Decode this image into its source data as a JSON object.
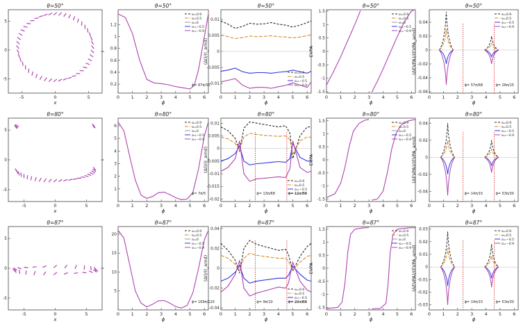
{
  "figure": {
    "columns": [
      {
        "ylabel": "y",
        "xlabel": "x"
      },
      {
        "ylabel": "I",
        "xlabel": "ϕ"
      },
      {
        "ylabel": "(ΔI)/(I_amd)",
        "xlabel": "ϕ"
      },
      {
        "ylabel": "EVPA",
        "xlabel": "ϕ"
      },
      {
        "ylabel": "(ΔEVPA)/(EVPA_amd)",
        "xlabel": "ϕ"
      }
    ],
    "colors": {
      "a09": "#222222",
      "a05": "#d98a2b",
      "a0": "#999999",
      "am05": "#3333dd",
      "am09": "#b040b0",
      "marker": "#cc2222",
      "axis": "#444444"
    }
  },
  "chart_data": [
    {
      "id": "r0c0",
      "type": "scatter",
      "title": "θ=50°",
      "xlabel": "x",
      "ylabel": "y",
      "xlim": [
        -7,
        7
      ],
      "ylim": [
        -7.5,
        7
      ],
      "xticks": [
        -5,
        0,
        5
      ],
      "yticks": [
        -5,
        0,
        5
      ],
      "description_points": {
        "shape": "ellipse",
        "cx": 0,
        "cy": 0.5,
        "rx": 5.6,
        "ry": 5.8
      }
    },
    {
      "id": "r0c1",
      "type": "line",
      "title": "θ=50°",
      "xlabel": "ϕ",
      "ylabel": "I",
      "xlim": [
        0,
        6.28
      ],
      "ylim": [
        0.05,
        1.45
      ],
      "xticks": [
        0,
        1,
        2,
        3,
        4,
        5,
        6
      ],
      "yticks": [
        0.2,
        0.4,
        0.6,
        0.8,
        1.0,
        1.2
      ],
      "legend": [
        "α=0.9",
        "α=0.5",
        "α=0",
        "α=−0.5",
        "α=−0.9"
      ],
      "annotation": "ϕ= 67π/36",
      "series": [
        {
          "name": "α=0",
          "x": [
            0,
            0.5,
            1,
            1.5,
            2,
            2.5,
            3,
            3.5,
            4,
            4.5,
            5,
            5.3,
            5.6,
            6,
            6.28
          ],
          "values": [
            1.38,
            1.32,
            1.05,
            0.6,
            0.28,
            0.22,
            0.21,
            0.19,
            0.16,
            0.14,
            0.12,
            0.18,
            0.45,
            1.0,
            1.38
          ]
        }
      ]
    },
    {
      "id": "r0c2",
      "type": "line",
      "title": "θ=50°",
      "xlabel": "ϕ",
      "ylabel": "(ΔI)/(I_amd)",
      "xlim": [
        0,
        6.28
      ],
      "ylim": [
        -0.013,
        0.013
      ],
      "xticks": [
        0,
        1,
        2,
        3,
        4,
        5,
        6
      ],
      "yticks": [
        -0.01,
        -0.005,
        0,
        0.005,
        0.01
      ],
      "legend": [
        "α=0.9",
        "α=0.5",
        "α=−0.5",
        "α=−0.9"
      ],
      "x": [
        0,
        0.5,
        1,
        1.5,
        2,
        2.5,
        3,
        3.5,
        4,
        4.5,
        5,
        5.5,
        6,
        6.28
      ],
      "series": [
        {
          "name": "α=0.9",
          "values": [
            0.0095,
            0.0085,
            0.0072,
            0.0078,
            0.0088,
            0.0085,
            0.0086,
            0.009,
            0.0085,
            0.0082,
            0.0076,
            0.0082,
            0.009,
            0.0095
          ]
        },
        {
          "name": "α=0.5",
          "values": [
            0.0052,
            0.0046,
            0.004,
            0.0043,
            0.0048,
            0.0046,
            0.0047,
            0.0049,
            0.0046,
            0.0045,
            0.0042,
            0.0045,
            0.0049,
            0.0052
          ]
        },
        {
          "name": "α=−0.5",
          "values": [
            -0.0062,
            -0.0058,
            -0.0052,
            -0.0063,
            -0.0068,
            -0.0066,
            -0.0066,
            -0.0068,
            -0.0065,
            -0.0063,
            -0.0058,
            -0.0063,
            -0.0068,
            -0.0062
          ]
        },
        {
          "name": "α=−0.9",
          "values": [
            -0.0095,
            -0.009,
            -0.0085,
            -0.0105,
            -0.0115,
            -0.0112,
            -0.0112,
            -0.0115,
            -0.011,
            -0.0106,
            -0.0098,
            -0.0105,
            -0.0112,
            -0.0095
          ]
        }
      ]
    },
    {
      "id": "r0c3",
      "type": "line",
      "title": "θ=50°",
      "xlabel": "ϕ",
      "ylabel": "EVPA",
      "xlim": [
        0,
        6.28
      ],
      "ylim": [
        -1.55,
        1.55
      ],
      "xticks": [
        0,
        1,
        2,
        3,
        4,
        5,
        6
      ],
      "yticks": [
        -1.5,
        -1.0,
        -0.5,
        0.0,
        0.5,
        1.0,
        1.5
      ],
      "legend": [
        "α=0.9",
        "α=0.5",
        "α=0",
        "α=−0.5",
        "α=−0.9"
      ],
      "series": [
        {
          "name": "α=0 (branch 1)",
          "x": [
            0,
            0.5,
            1,
            1.5,
            2,
            2.4
          ],
          "values": [
            -1.25,
            -0.75,
            -0.2,
            0.4,
            1.0,
            1.52
          ]
        },
        {
          "name": "α=0 (branch 2)",
          "x": [
            3.2,
            3.6,
            4,
            4.5,
            5,
            5.5,
            6,
            6.28
          ],
          "values": [
            -1.52,
            -1.1,
            -0.65,
            -0.05,
            0.55,
            1.1,
            1.5,
            1.56
          ]
        }
      ]
    },
    {
      "id": "r0c4",
      "type": "line",
      "title": "θ=50°",
      "xlabel": "ϕ",
      "ylabel": "(ΔEVPA)/(EVPA_amd)",
      "xlim": [
        0,
        6.28
      ],
      "ylim": [
        -0.062,
        0.058
      ],
      "xticks": [
        0,
        1,
        2,
        3,
        4,
        5,
        6
      ],
      "yticks": [
        -0.06,
        -0.04,
        -0.02,
        0,
        0.02,
        0.04
      ],
      "legend": [
        "α=0.9",
        "α=0.5",
        "α=−0.5",
        "α=−0.9"
      ],
      "annotations": [
        "ϕ= 57π/68",
        "ϕ= 26π/15"
      ],
      "spikes": [
        {
          "x": 1.2,
          "heights": [
            0.055,
            0.03,
            -0.02,
            -0.05
          ]
        },
        {
          "x": 4.4,
          "heights": [
            0.02,
            0.01,
            -0.01,
            -0.02
          ]
        }
      ]
    },
    {
      "id": "r1c0",
      "type": "scatter",
      "title": "θ=80°",
      "xlabel": "x",
      "ylabel": "y",
      "xlim": [
        -7.5,
        7.5
      ],
      "ylim": [
        -7,
        7
      ],
      "xticks": [
        -5,
        0,
        5
      ],
      "yticks": [
        -5,
        0,
        5
      ],
      "description_points": {
        "shape": "bowl",
        "top": 6.5,
        "bottom": -6.5
      }
    },
    {
      "id": "r1c1",
      "type": "line",
      "title": "θ=80°",
      "xlabel": "ϕ",
      "ylabel": "I",
      "xlim": [
        0,
        6.28
      ],
      "ylim": [
        0,
        6.6
      ],
      "xticks": [
        0,
        1,
        2,
        3,
        4,
        5,
        6
      ],
      "yticks": [
        1,
        2,
        3,
        4,
        5,
        6
      ],
      "legend": [
        "α=0.9",
        "α=0.5",
        "α=0",
        "α=−0.5",
        "α=−0.9"
      ],
      "annotation": "ϕ= 7π/5",
      "series": [
        {
          "name": "α=0",
          "x": [
            0,
            0.4,
            0.8,
            1.2,
            1.6,
            2.0,
            2.4,
            2.8,
            3.2,
            3.6,
            4.0,
            4.4,
            4.8,
            5.2,
            5.6,
            6.0,
            6.28
          ],
          "values": [
            6.3,
            5.6,
            3.6,
            1.7,
            0.5,
            0.25,
            0.4,
            0.7,
            0.75,
            0.55,
            0.3,
            0.15,
            0.2,
            0.7,
            2.6,
            5.2,
            6.3
          ]
        }
      ]
    },
    {
      "id": "r1c2",
      "type": "line",
      "title": "θ=80°",
      "xlabel": "ϕ",
      "ylabel": "(ΔI)/(I_amd)",
      "xlim": [
        0,
        6.28
      ],
      "ylim": [
        -0.021,
        0.012
      ],
      "xticks": [
        0,
        1,
        2,
        3,
        4,
        5,
        6
      ],
      "yticks": [
        -0.02,
        -0.015,
        -0.01,
        -0.005,
        0,
        0.005,
        0.01
      ],
      "legend": [
        "α=0.9",
        "α=0.5",
        "α=−0.5",
        "α=−0.9"
      ],
      "annotations": [
        "ϕ= 13π/68",
        "ϕ= 13π/30"
      ],
      "x": [
        0,
        0.5,
        1,
        1.3,
        1.6,
        2,
        2.5,
        3,
        3.5,
        4,
        4.5,
        4.8,
        5,
        5.5,
        6,
        6.28
      ],
      "series": [
        {
          "name": "α=0.9",
          "values": [
            0.0085,
            0.007,
            0.004,
            -0.001,
            0.008,
            0.0105,
            0.01,
            0.0095,
            0.009,
            0.0085,
            0.009,
            0.006,
            -0.004,
            0.005,
            0.0085,
            0.0085
          ]
        },
        {
          "name": "α=0.5",
          "values": [
            0.0045,
            0.0038,
            0.002,
            -0.0005,
            0.0045,
            0.006,
            0.0055,
            0.0052,
            0.005,
            0.0048,
            0.005,
            0.0035,
            -0.0025,
            0.003,
            0.0045,
            0.0045
          ]
        },
        {
          "name": "α=−0.5",
          "values": [
            -0.005,
            -0.004,
            -0.002,
            0.001,
            -0.005,
            -0.0065,
            -0.006,
            -0.0058,
            -0.0055,
            -0.0052,
            -0.0055,
            -0.004,
            0.002,
            -0.0035,
            -0.005,
            -0.005
          ]
        },
        {
          "name": "α=−0.9",
          "values": [
            -0.009,
            -0.0075,
            -0.004,
            0.003,
            -0.01,
            -0.013,
            -0.012,
            -0.0118,
            -0.0115,
            -0.0112,
            -0.0115,
            -0.008,
            0.003,
            -0.0075,
            -0.0095,
            -0.009
          ]
        }
      ]
    },
    {
      "id": "r1c3",
      "type": "line",
      "title": "θ=80°",
      "xlabel": "ϕ",
      "ylabel": "EVPA",
      "xlim": [
        0,
        6.28
      ],
      "ylim": [
        -1.6,
        1.6
      ],
      "xticks": [
        0,
        1,
        2,
        3,
        4,
        5,
        6
      ],
      "yticks": [
        -1.5,
        -1.0,
        -0.5,
        0.0,
        0.5,
        1.0,
        1.5
      ],
      "legend": [
        "α=0.9",
        "α=0.5",
        "α=0",
        "α=−0.5",
        "α=−0.9"
      ],
      "series": [
        {
          "name": "α=0 (branch 1)",
          "x": [
            0,
            0.6,
            1.0,
            1.3,
            1.6,
            1.9,
            2.3,
            2.7,
            3.0
          ],
          "values": [
            -1.45,
            -1.3,
            -0.9,
            -0.3,
            0.5,
            1.1,
            1.4,
            1.52,
            1.55
          ]
        },
        {
          "name": "α=0 (branch 2)",
          "x": [
            3.2,
            3.6,
            4.0,
            4.3,
            4.6,
            4.9,
            5.3,
            5.8,
            6.28
          ],
          "values": [
            -1.55,
            -1.5,
            -1.2,
            -0.5,
            0.4,
            1.0,
            1.35,
            1.5,
            1.55
          ]
        }
      ]
    },
    {
      "id": "r1c4",
      "type": "line",
      "title": "θ=80°",
      "xlabel": "ϕ",
      "ylabel": "(ΔEVPA)/(EVPA_amd)",
      "xlim": [
        0,
        6.28
      ],
      "ylim": [
        -0.052,
        0.046
      ],
      "xticks": [
        0,
        1,
        2,
        3,
        4,
        5,
        6
      ],
      "yticks": [
        -0.04,
        -0.02,
        0,
        0.02,
        0.04
      ],
      "legend": [
        "α=0.9",
        "α=0.5",
        "α=−0.5",
        "α=−0.9"
      ],
      "annotations": [
        "ϕ= 14π/15",
        "ϕ= 53π/30"
      ],
      "spikes": [
        {
          "x": 1.3,
          "heights": [
            0.04,
            0.02,
            -0.02,
            -0.045
          ]
        },
        {
          "x": 4.4,
          "heights": [
            0.02,
            0.01,
            -0.01,
            -0.018
          ]
        }
      ]
    },
    {
      "id": "r2c0",
      "type": "scatter",
      "title": "θ=87°",
      "xlabel": "x",
      "ylabel": "y",
      "xlim": [
        -7.5,
        7.5
      ],
      "ylim": [
        -7,
        7
      ],
      "xticks": [
        -5,
        0,
        5
      ],
      "yticks": [
        -5,
        0,
        5
      ],
      "description_points": {
        "shape": "flat-band",
        "y": 0
      }
    },
    {
      "id": "r2c1",
      "type": "line",
      "title": "θ=87°",
      "xlabel": "ϕ",
      "ylabel": "I",
      "xlim": [
        0,
        6.28
      ],
      "ylim": [
        0,
        22
      ],
      "xticks": [
        0,
        1,
        2,
        3,
        4,
        5,
        6
      ],
      "yticks": [
        5,
        10,
        15,
        20
      ],
      "legend": [
        "α=0.9",
        "α=0.5",
        "α=0",
        "α=−0.5",
        "α=−0.9"
      ],
      "annotation": "ϕ= 169π/120",
      "series": [
        {
          "name": "α=0",
          "x": [
            0,
            0.4,
            0.8,
            1.2,
            1.6,
            2.0,
            2.4,
            2.8,
            3.2,
            3.6,
            4.0,
            4.4,
            4.8,
            5.2,
            5.6,
            6.0,
            6.28
          ],
          "values": [
            21,
            19,
            12,
            5,
            1.8,
            0.8,
            1.5,
            2.4,
            2.5,
            1.8,
            0.9,
            0.5,
            1.2,
            4.5,
            11,
            18.5,
            21
          ]
        }
      ]
    },
    {
      "id": "r2c2",
      "type": "line",
      "title": "θ=87°",
      "xlabel": "ϕ",
      "ylabel": "(ΔI)/(I_amd)",
      "xlim": [
        0,
        6.28
      ],
      "ylim": [
        -0.042,
        0.042
      ],
      "xticks": [
        0,
        1,
        2,
        3,
        4,
        5,
        6
      ],
      "yticks": [
        -0.04,
        -0.02,
        0,
        0.02,
        0.04
      ],
      "legend": [
        "α=0.9",
        "α=0.5",
        "α=−0.5",
        "α=−0.9"
      ],
      "annotations": [
        "ϕ= 9π/10",
        "ϕ= 29π/60"
      ],
      "x": [
        0,
        0.5,
        1,
        1.3,
        1.6,
        2,
        2.5,
        3,
        3.5,
        4,
        4.5,
        4.7,
        5,
        5.5,
        6,
        6.28
      ],
      "series": [
        {
          "name": "α=0.9",
          "values": [
            0.025,
            0.018,
            0.008,
            -0.005,
            0.02,
            0.028,
            0.024,
            0.022,
            0.02,
            0.018,
            0.019,
            0.014,
            -0.003,
            0.012,
            0.022,
            0.025
          ]
        },
        {
          "name": "α=0.5",
          "values": [
            0.013,
            0.01,
            0.004,
            -0.003,
            0.01,
            0.015,
            0.013,
            0.012,
            0.011,
            0.01,
            0.01,
            0.007,
            -0.002,
            0.006,
            0.012,
            0.013
          ]
        },
        {
          "name": "α=−0.5",
          "values": [
            -0.013,
            -0.01,
            -0.004,
            0.003,
            -0.01,
            -0.015,
            -0.013,
            -0.012,
            -0.011,
            -0.01,
            -0.01,
            -0.007,
            0.002,
            -0.006,
            -0.012,
            -0.013
          ]
        },
        {
          "name": "α=−0.9",
          "values": [
            -0.024,
            -0.018,
            -0.006,
            0.008,
            -0.02,
            -0.028,
            -0.025,
            -0.023,
            -0.021,
            -0.019,
            -0.02,
            -0.015,
            0.006,
            -0.013,
            -0.022,
            -0.024
          ]
        }
      ]
    },
    {
      "id": "r2c3",
      "type": "line",
      "title": "θ=87°",
      "xlabel": "ϕ",
      "ylabel": "EVPA",
      "xlim": [
        0,
        6.28
      ],
      "ylim": [
        -1.6,
        1.6
      ],
      "xticks": [
        0,
        1,
        2,
        3,
        4,
        5,
        6
      ],
      "yticks": [
        -1.5,
        -1.0,
        -0.5,
        0.0,
        0.5,
        1.0,
        1.5
      ],
      "legend": [
        "α=0.9",
        "α=0.5",
        "α=0",
        "α=−0.5",
        "α=−0.9"
      ],
      "series": [
        {
          "name": "α=0 (branch 1)",
          "x": [
            0,
            0.8,
            1.1,
            1.3,
            1.5,
            1.7,
            2.0,
            2.6,
            3.0
          ],
          "values": [
            -1.55,
            -1.5,
            -1.3,
            -0.6,
            0.6,
            1.3,
            1.5,
            1.55,
            1.56
          ]
        },
        {
          "name": "α=0 (branch 2)",
          "x": [
            3.2,
            3.8,
            4.2,
            4.35,
            4.5,
            4.7,
            5.0,
            5.8,
            6.28
          ],
          "values": [
            -1.56,
            -1.54,
            -1.35,
            -0.6,
            0.6,
            1.3,
            1.5,
            1.55,
            1.56
          ]
        }
      ]
    },
    {
      "id": "r2c4",
      "type": "line",
      "title": "θ=87°",
      "xlabel": "ϕ",
      "ylabel": "(ΔEVPA)/(EVPA_amd)",
      "xlim": [
        0,
        6.28
      ],
      "ylim": [
        -0.034,
        0.032
      ],
      "xticks": [
        0,
        1,
        2,
        3,
        4,
        5,
        6
      ],
      "yticks": [
        -0.03,
        -0.02,
        -0.01,
        0,
        0.01,
        0.02,
        0.03
      ],
      "legend": [
        "α=0.9",
        "α=0.5",
        "α=−0.5",
        "α=−0.9"
      ],
      "annotations": [
        "ϕ= 14π/15",
        "ϕ= 53π/30"
      ],
      "spikes": [
        {
          "x": 1.3,
          "heights": [
            0.028,
            0.015,
            -0.015,
            -0.03
          ]
        },
        {
          "x": 4.4,
          "heights": [
            0.018,
            0.009,
            -0.009,
            -0.016
          ]
        }
      ]
    }
  ]
}
